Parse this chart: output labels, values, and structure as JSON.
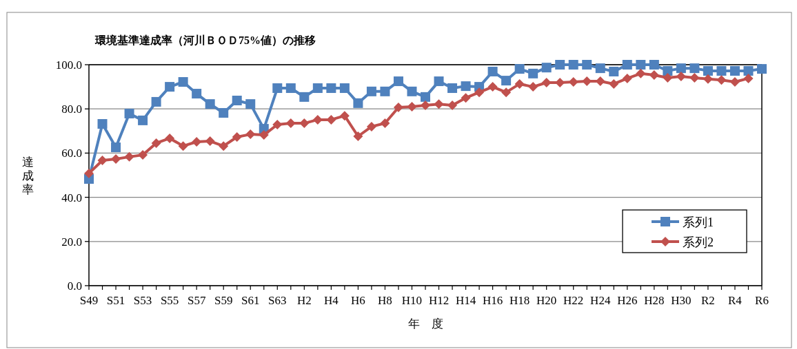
{
  "chart_data": {
    "type": "line",
    "title": "環境基準達成率（河川ＢＯＤ75%値）の推移",
    "xlabel": "年　度",
    "ylabel": "達成率",
    "categories": [
      "S49",
      null,
      "S51",
      null,
      "S53",
      null,
      "S55",
      null,
      "S57",
      null,
      "S59",
      null,
      "S61",
      null,
      "S63",
      null,
      "H2",
      null,
      "H4",
      null,
      "H6",
      null,
      "H8",
      null,
      "H10",
      null,
      "H12",
      null,
      "H14",
      null,
      "H16",
      null,
      "H18",
      null,
      "H20",
      null,
      "H22",
      null,
      "H24",
      null,
      "H26",
      null,
      "H28",
      null,
      "H30",
      null,
      "R2",
      null,
      "R4",
      null,
      "R6"
    ],
    "series": [
      {
        "name": "系列1",
        "color": "#4f81bd",
        "marker": "square",
        "values": [
          48.3,
          73.2,
          62.6,
          77.9,
          74.8,
          83.2,
          90.0,
          92.2,
          86.9,
          82.2,
          78.2,
          83.8,
          82.2,
          71.0,
          89.4,
          89.4,
          85.4,
          89.4,
          89.4,
          89.4,
          82.6,
          87.9,
          87.9,
          92.5,
          87.9,
          85.4,
          92.5,
          89.4,
          90.3,
          90.0,
          96.9,
          92.8,
          98.1,
          96.0,
          98.7,
          100.0,
          100.0,
          100.0,
          98.4,
          96.9,
          100.0,
          100.0,
          100.0,
          97.2,
          98.4,
          98.4,
          97.2,
          97.2,
          97.2,
          97.2,
          98.1
        ]
      },
      {
        "name": "系列2",
        "color": "#c0504d",
        "marker": "diamond",
        "values": [
          50.8,
          56.7,
          57.3,
          58.3,
          59.2,
          64.5,
          66.7,
          63.2,
          65.1,
          65.4,
          63.2,
          67.3,
          68.5,
          68.2,
          72.9,
          73.5,
          73.5,
          75.1,
          75.1,
          76.9,
          67.6,
          72.0,
          73.5,
          80.7,
          81.0,
          81.6,
          82.2,
          81.6,
          85.0,
          87.5,
          90.0,
          87.5,
          91.3,
          90.0,
          91.9,
          91.9,
          92.2,
          92.5,
          92.5,
          91.3,
          93.8,
          96.0,
          95.3,
          94.1,
          94.7,
          94.1,
          93.5,
          93.1,
          92.2,
          93.8,
          null
        ]
      }
    ],
    "ylim": [
      0,
      100
    ],
    "yticks": [
      {
        "value": 0,
        "label": "0.0"
      },
      {
        "value": 20,
        "label": "20.0"
      },
      {
        "value": 40,
        "label": "40.0"
      },
      {
        "value": 60,
        "label": "60.0"
      },
      {
        "value": 80,
        "label": "80.0"
      },
      {
        "value": 100,
        "label": "100.0"
      }
    ],
    "grid": "y",
    "legend": "bottom right",
    "line_style": "solid"
  }
}
